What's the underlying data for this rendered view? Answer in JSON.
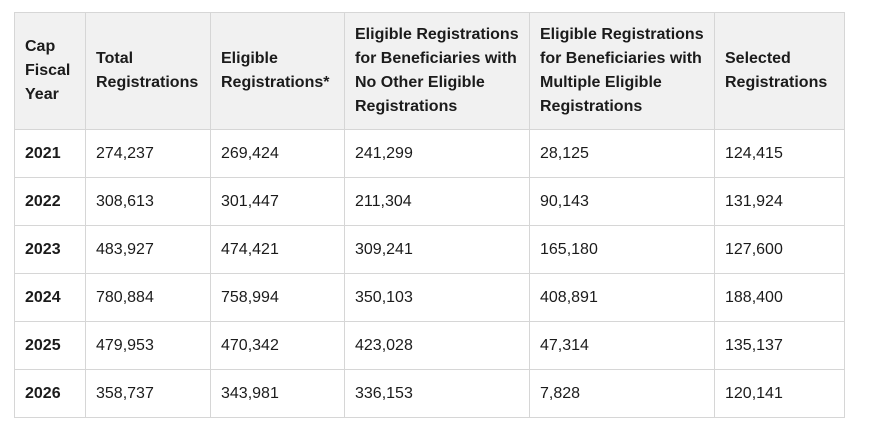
{
  "table": {
    "headers": [
      "Cap Fiscal Year",
      "Total Registrations",
      "Eligible Registrations*",
      "Eligible Registrations for Beneficiaries with No Other Eligible Registrations",
      "Eligible Registrations for Beneficiaries with Multiple Eligible Registrations",
      "Selected Registrations"
    ],
    "rows": [
      [
        "2021",
        "274,237",
        "269,424",
        "241,299",
        "28,125",
        "124,415"
      ],
      [
        "2022",
        "308,613",
        "301,447",
        "211,304",
        "90,143",
        "131,924"
      ],
      [
        "2023",
        "483,927",
        "474,421",
        "309,241",
        "165,180",
        "127,600"
      ],
      [
        "2024",
        "780,884",
        "758,994",
        "350,103",
        "408,891",
        "188,400"
      ],
      [
        "2025",
        "479,953",
        "470,342",
        "423,028",
        "47,314",
        "135,137"
      ],
      [
        "2026",
        "358,737",
        "343,981",
        "336,153",
        "7,828",
        "120,141"
      ]
    ]
  },
  "colors": {
    "header_bg": "#f1f1f1",
    "border": "#d6d6d6",
    "text": "#1b1b1b"
  }
}
